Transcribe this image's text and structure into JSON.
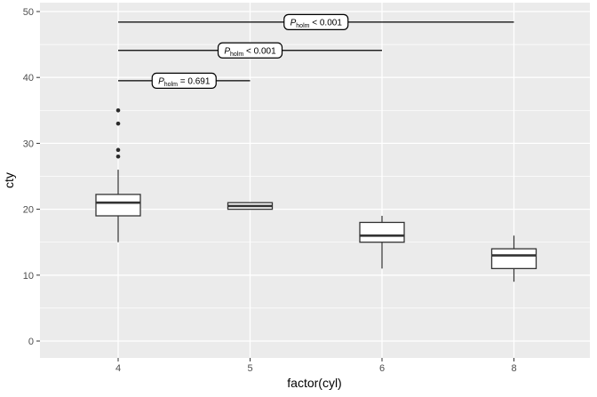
{
  "figure": {
    "background": "#FFFFFF",
    "panel_background": "#EBEBEB",
    "gridline_color": "#FFFFFF",
    "box_fill_color": "#FFFFFF",
    "box_stroke_color": "#333333",
    "outlier_color": "#2b2b2b",
    "tick_label_color": "#4D4D4D",
    "axis_title_color": "#000000",
    "significance_line_color": "#000000"
  },
  "chart_data": {
    "type": "boxplot",
    "title": "",
    "xlabel": "factor(cyl)",
    "ylabel": "cty",
    "categories": [
      "4",
      "5",
      "6",
      "8"
    ],
    "yticks": [
      0,
      10,
      20,
      30,
      40,
      50
    ],
    "yticks_minor": [
      5,
      15,
      25,
      35,
      45
    ],
    "ylim": [
      -2.5,
      51.4
    ],
    "grid": "horizontal major+minor white, vertical major at each category",
    "legend": "none",
    "boxes": [
      {
        "category": "4",
        "whisker_low": 15,
        "q1": 19,
        "median": 21,
        "q3": 22.25,
        "whisker_high": 26,
        "outliers": [
          28,
          29,
          33,
          35
        ]
      },
      {
        "category": "5",
        "whisker_low": 20,
        "q1": 20,
        "median": 20.5,
        "q3": 21,
        "whisker_high": 21,
        "outliers": []
      },
      {
        "category": "6",
        "whisker_low": 11,
        "q1": 15,
        "median": 16,
        "q3": 18,
        "whisker_high": 19,
        "outliers": []
      },
      {
        "category": "8",
        "whisker_low": 9,
        "q1": 11,
        "median": 13,
        "q3": 14,
        "whisker_high": 16,
        "outliers": []
      }
    ],
    "comparisons": [
      {
        "group_a": "4",
        "group_b": "8",
        "y": 48.4,
        "label_p": "P",
        "label_sub": "holm",
        "label_value": "< 0.001"
      },
      {
        "group_a": "4",
        "group_b": "6",
        "y": 44.1,
        "label_p": "P",
        "label_sub": "holm",
        "label_value": "< 0.001"
      },
      {
        "group_a": "4",
        "group_b": "5",
        "y": 39.5,
        "label_p": "P",
        "label_sub": "holm",
        "label_value": "= 0.691"
      }
    ]
  }
}
